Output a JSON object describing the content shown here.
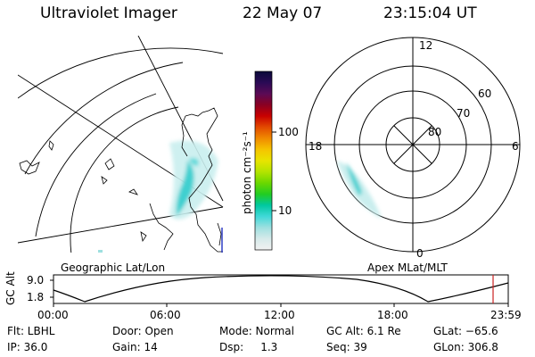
{
  "header": {
    "title": "Ultraviolet Imager",
    "date": "22 May 07",
    "time": "23:15:04 UT"
  },
  "colorbar": {
    "unit_label": "photon cm⁻²s⁻¹",
    "ticks": [
      "100",
      "10"
    ],
    "colors": [
      "#0a0a3a",
      "#2a0a55",
      "#5a0a55",
      "#8a0022",
      "#c80000",
      "#e34a00",
      "#f08a00",
      "#f5c400",
      "#e8e400",
      "#b4e400",
      "#6bd800",
      "#22cc22",
      "#00c8a0",
      "#40d8d8",
      "#9ee0e0",
      "#d6eaea",
      "#f2f2f2"
    ]
  },
  "left_panel": {
    "caption": "Geographic Lat/Lon"
  },
  "right_panel": {
    "caption": "Apex MLat/MLT",
    "mlt_labels": {
      "top": "12",
      "left": "18",
      "right": "6",
      "bottom": "0"
    },
    "lat_labels": [
      "60",
      "70",
      "80"
    ]
  },
  "altitude_plot": {
    "ylabel": "GC Alt",
    "yticks": [
      "9.0",
      "1.8"
    ],
    "xticks": [
      "00:00",
      "06:00",
      "12:00",
      "18:00",
      "23:59"
    ],
    "marker_color": "#cc2222"
  },
  "meta": {
    "filter": "Flt: LBHL",
    "ip": "IP: 36.0",
    "door": "Door: Open",
    "gain": "Gain: 14",
    "mode": "Mode: Normal",
    "dsp": "Dsp:     1.3",
    "gc_alt": "GC Alt: 6.1 Re",
    "seq": "Seq: 39",
    "glat": "GLat: −65.6",
    "glon": "GLon: 306.8"
  },
  "colors": {
    "aurora": "#40d0d0",
    "ink": "#000000"
  }
}
